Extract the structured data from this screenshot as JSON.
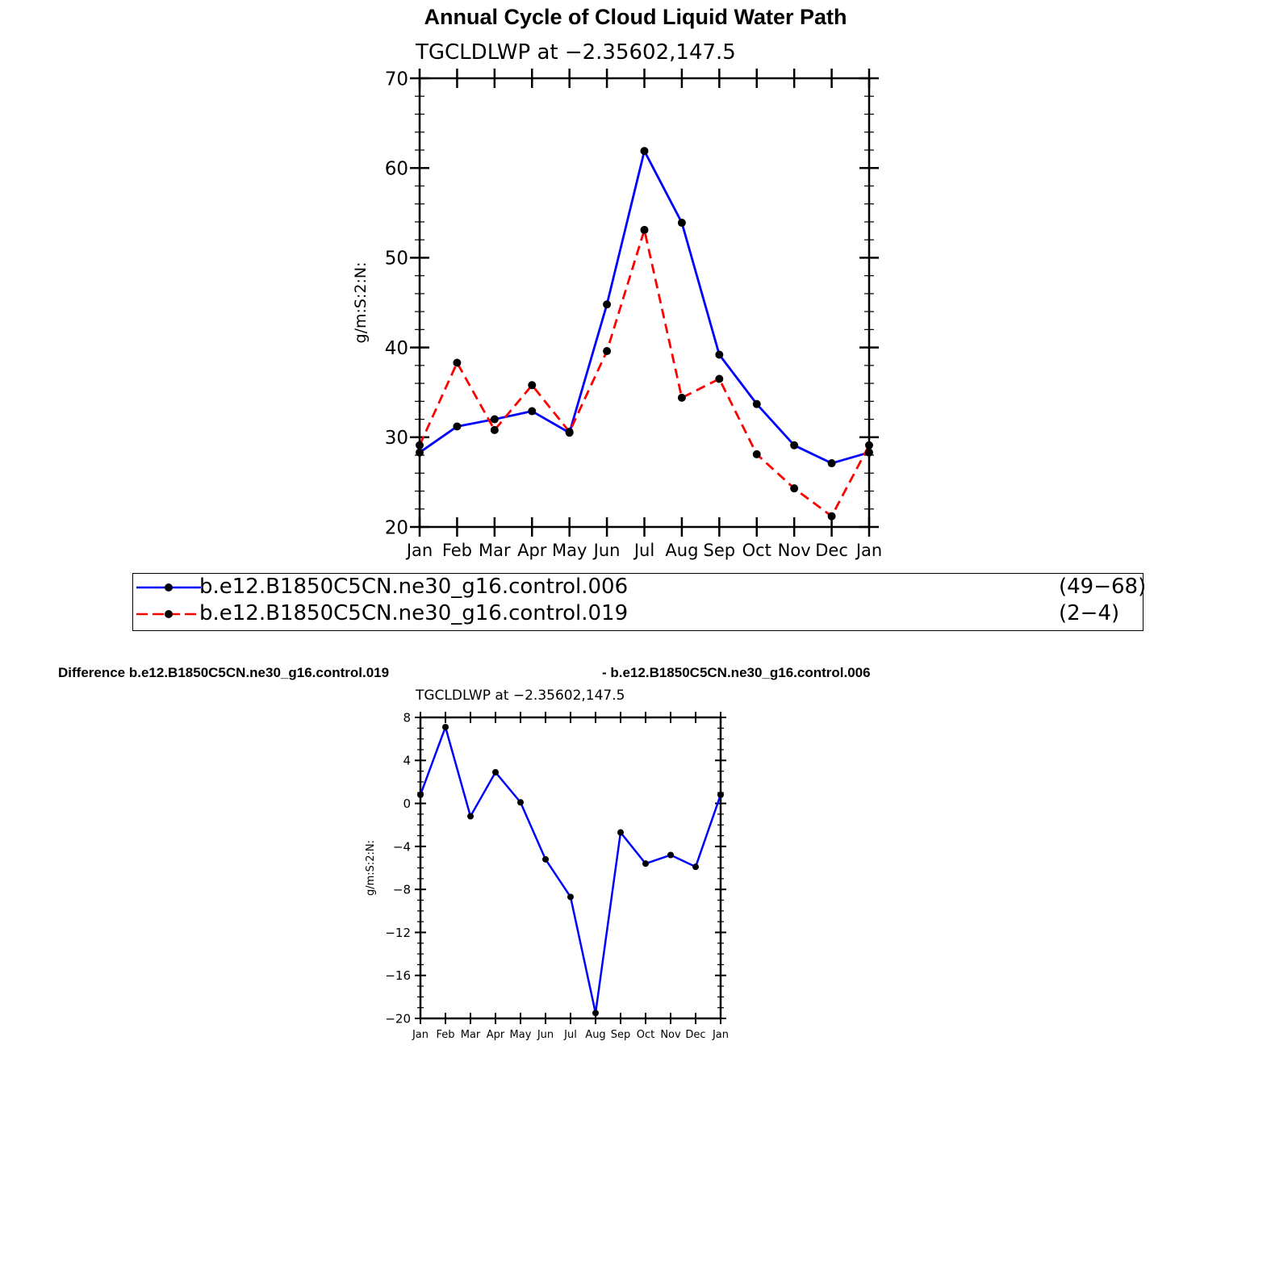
{
  "page": {
    "title": "Annual Cycle of Cloud Liquid Water Path",
    "diff_title_left": "Difference b.e12.B1850C5CN.ne30_g16.control.019",
    "diff_title_right": "- b.e12.B1850C5CN.ne30_g16.control.006"
  },
  "legend": {
    "items": [
      {
        "name": "b.e12.B1850C5CN.ne30_g16.control.006",
        "years": "(49−68)",
        "color": "#0000ff",
        "dash": "solid"
      },
      {
        "name": "b.e12.B1850C5CN.ne30_g16.control.019",
        "years": "(2−4)",
        "color": "#ff0000",
        "dash": "dashed"
      }
    ]
  },
  "chart_data": [
    {
      "type": "line",
      "subtitle": "TGCLDLWP  at  −2.35602,147.5",
      "ylabel": "g/m:S:2:N:",
      "categories": [
        "Jan",
        "Feb",
        "Mar",
        "Apr",
        "May",
        "Jun",
        "Jul",
        "Aug",
        "Sep",
        "Oct",
        "Nov",
        "Dec",
        "Jan"
      ],
      "ylim": [
        20,
        70
      ],
      "yticks": [
        "20",
        "30",
        "40",
        "50",
        "60",
        "70"
      ],
      "series": [
        {
          "name": "b.e12.B1850C5CN.ne30_g16.control.006",
          "color": "#0000ff",
          "dash": "solid",
          "values": [
            28.3,
            31.2,
            32.0,
            32.9,
            30.5,
            44.8,
            61.9,
            53.9,
            39.2,
            33.7,
            29.1,
            27.1,
            28.3
          ]
        },
        {
          "name": "b.e12.B1850C5CN.ne30_g16.control.019",
          "color": "#ff0000",
          "dash": "dashed",
          "values": [
            29.1,
            38.3,
            30.8,
            35.8,
            30.6,
            39.6,
            53.1,
            34.4,
            36.5,
            28.1,
            24.3,
            21.2,
            29.1
          ]
        }
      ]
    },
    {
      "type": "line",
      "subtitle": "TGCLDLWP  at  −2.35602,147.5",
      "ylabel": "g/m:S:2:N:",
      "categories": [
        "Jan",
        "Feb",
        "Mar",
        "Apr",
        "May",
        "Jun",
        "Jul",
        "Aug",
        "Sep",
        "Oct",
        "Nov",
        "Dec",
        "Jan"
      ],
      "ylim": [
        -20,
        8
      ],
      "yticks": [
        "−20",
        "−16",
        "−12",
        "−8",
        "−4",
        "0",
        "4",
        "8"
      ],
      "series": [
        {
          "color": "#0000ff",
          "dash": "solid",
          "values": [
            0.8,
            7.1,
            -1.2,
            2.9,
            0.1,
            -5.2,
            -8.7,
            -19.5,
            -2.7,
            -5.6,
            -4.8,
            -5.9,
            0.8
          ]
        }
      ]
    }
  ]
}
